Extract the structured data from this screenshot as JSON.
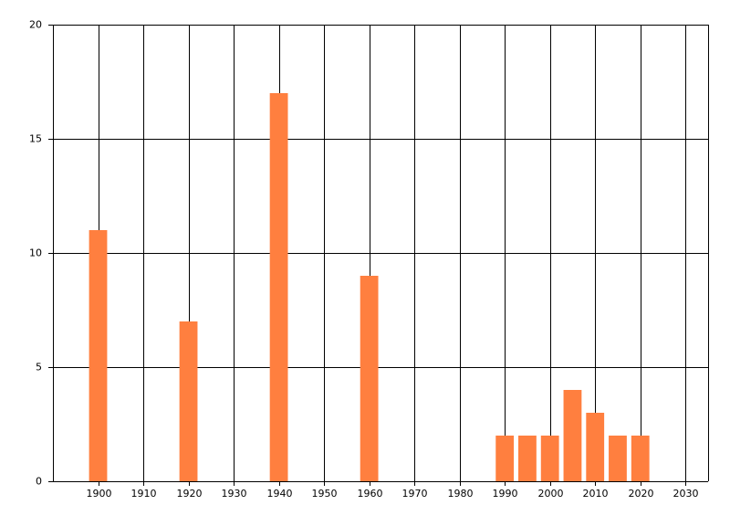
{
  "chart_data": {
    "type": "bar",
    "x": [
      1900,
      1920,
      1940,
      1960,
      1990,
      1995,
      2000,
      2005,
      2010,
      2015,
      2020
    ],
    "values": [
      11,
      7,
      17,
      9,
      2,
      2,
      2,
      4,
      3,
      2,
      2
    ],
    "color": "#ff7f3f",
    "bar_width": 4,
    "xlim": [
      1890,
      2035
    ],
    "xticks": [
      1900,
      1910,
      1920,
      1930,
      1940,
      1950,
      1960,
      1970,
      1980,
      1990,
      2000,
      2010,
      2020,
      2030
    ],
    "ylim": [
      0,
      20
    ],
    "yticks": [
      0,
      5,
      10,
      15,
      20
    ],
    "grid": true
  }
}
